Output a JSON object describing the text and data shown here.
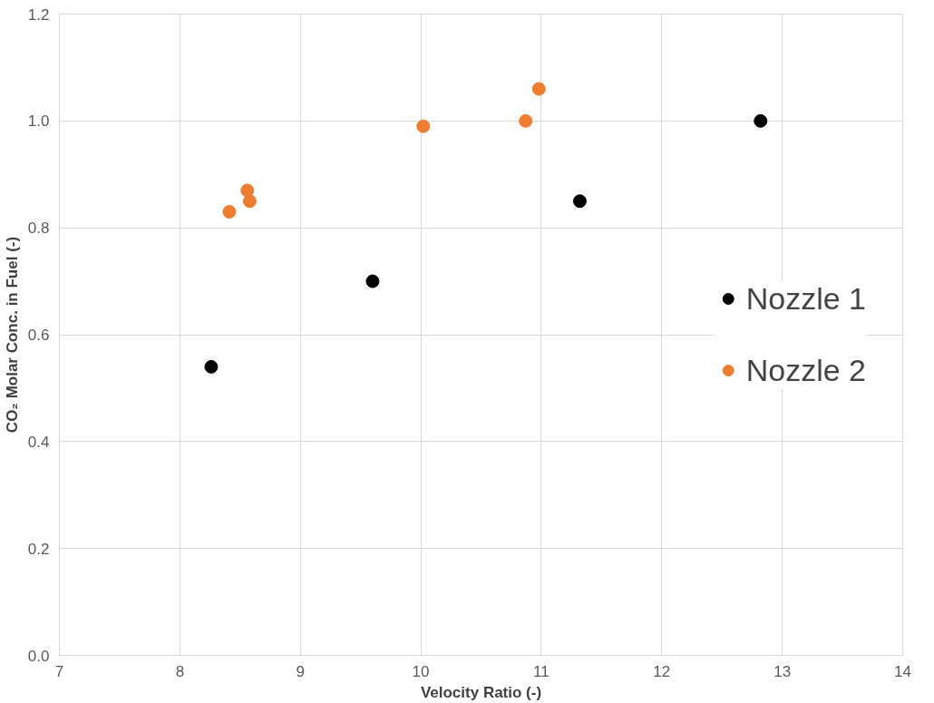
{
  "chart_data": {
    "type": "scatter",
    "xlabel": "Velocity Ratio (-)",
    "ylabel": "CO₂ Molar Conc. in Fuel (-)",
    "xlim": [
      7,
      14
    ],
    "xticks": [
      7,
      8,
      9,
      10,
      11,
      12,
      13,
      14
    ],
    "ylim": [
      0,
      1.2
    ],
    "yticks": [
      {
        "value": 0,
        "label": "0.0"
      },
      {
        "value": 0.2,
        "label": "0.2"
      },
      {
        "value": 0.4,
        "label": "0.4"
      },
      {
        "value": 0.6,
        "label": "0.6"
      },
      {
        "value": 0.8,
        "label": "0.8"
      },
      {
        "value": 1.0,
        "label": "1.0"
      },
      {
        "value": 1.2,
        "label": "1.2"
      }
    ],
    "grid": true,
    "legend": "right",
    "marker": "circle",
    "series": [
      {
        "name": "Nozzle 1",
        "color": "#000000",
        "x": [
          8.26,
          9.6,
          11.32,
          12.82
        ],
        "values": [
          0.54,
          0.7,
          0.85,
          1.0
        ]
      },
      {
        "name": "Nozzle 2",
        "color": "#ed7d31",
        "x": [
          8.41,
          8.56,
          8.58,
          10.02,
          10.87,
          10.98
        ],
        "values": [
          0.83,
          0.87,
          0.85,
          0.99,
          1.0,
          1.06
        ]
      }
    ]
  }
}
